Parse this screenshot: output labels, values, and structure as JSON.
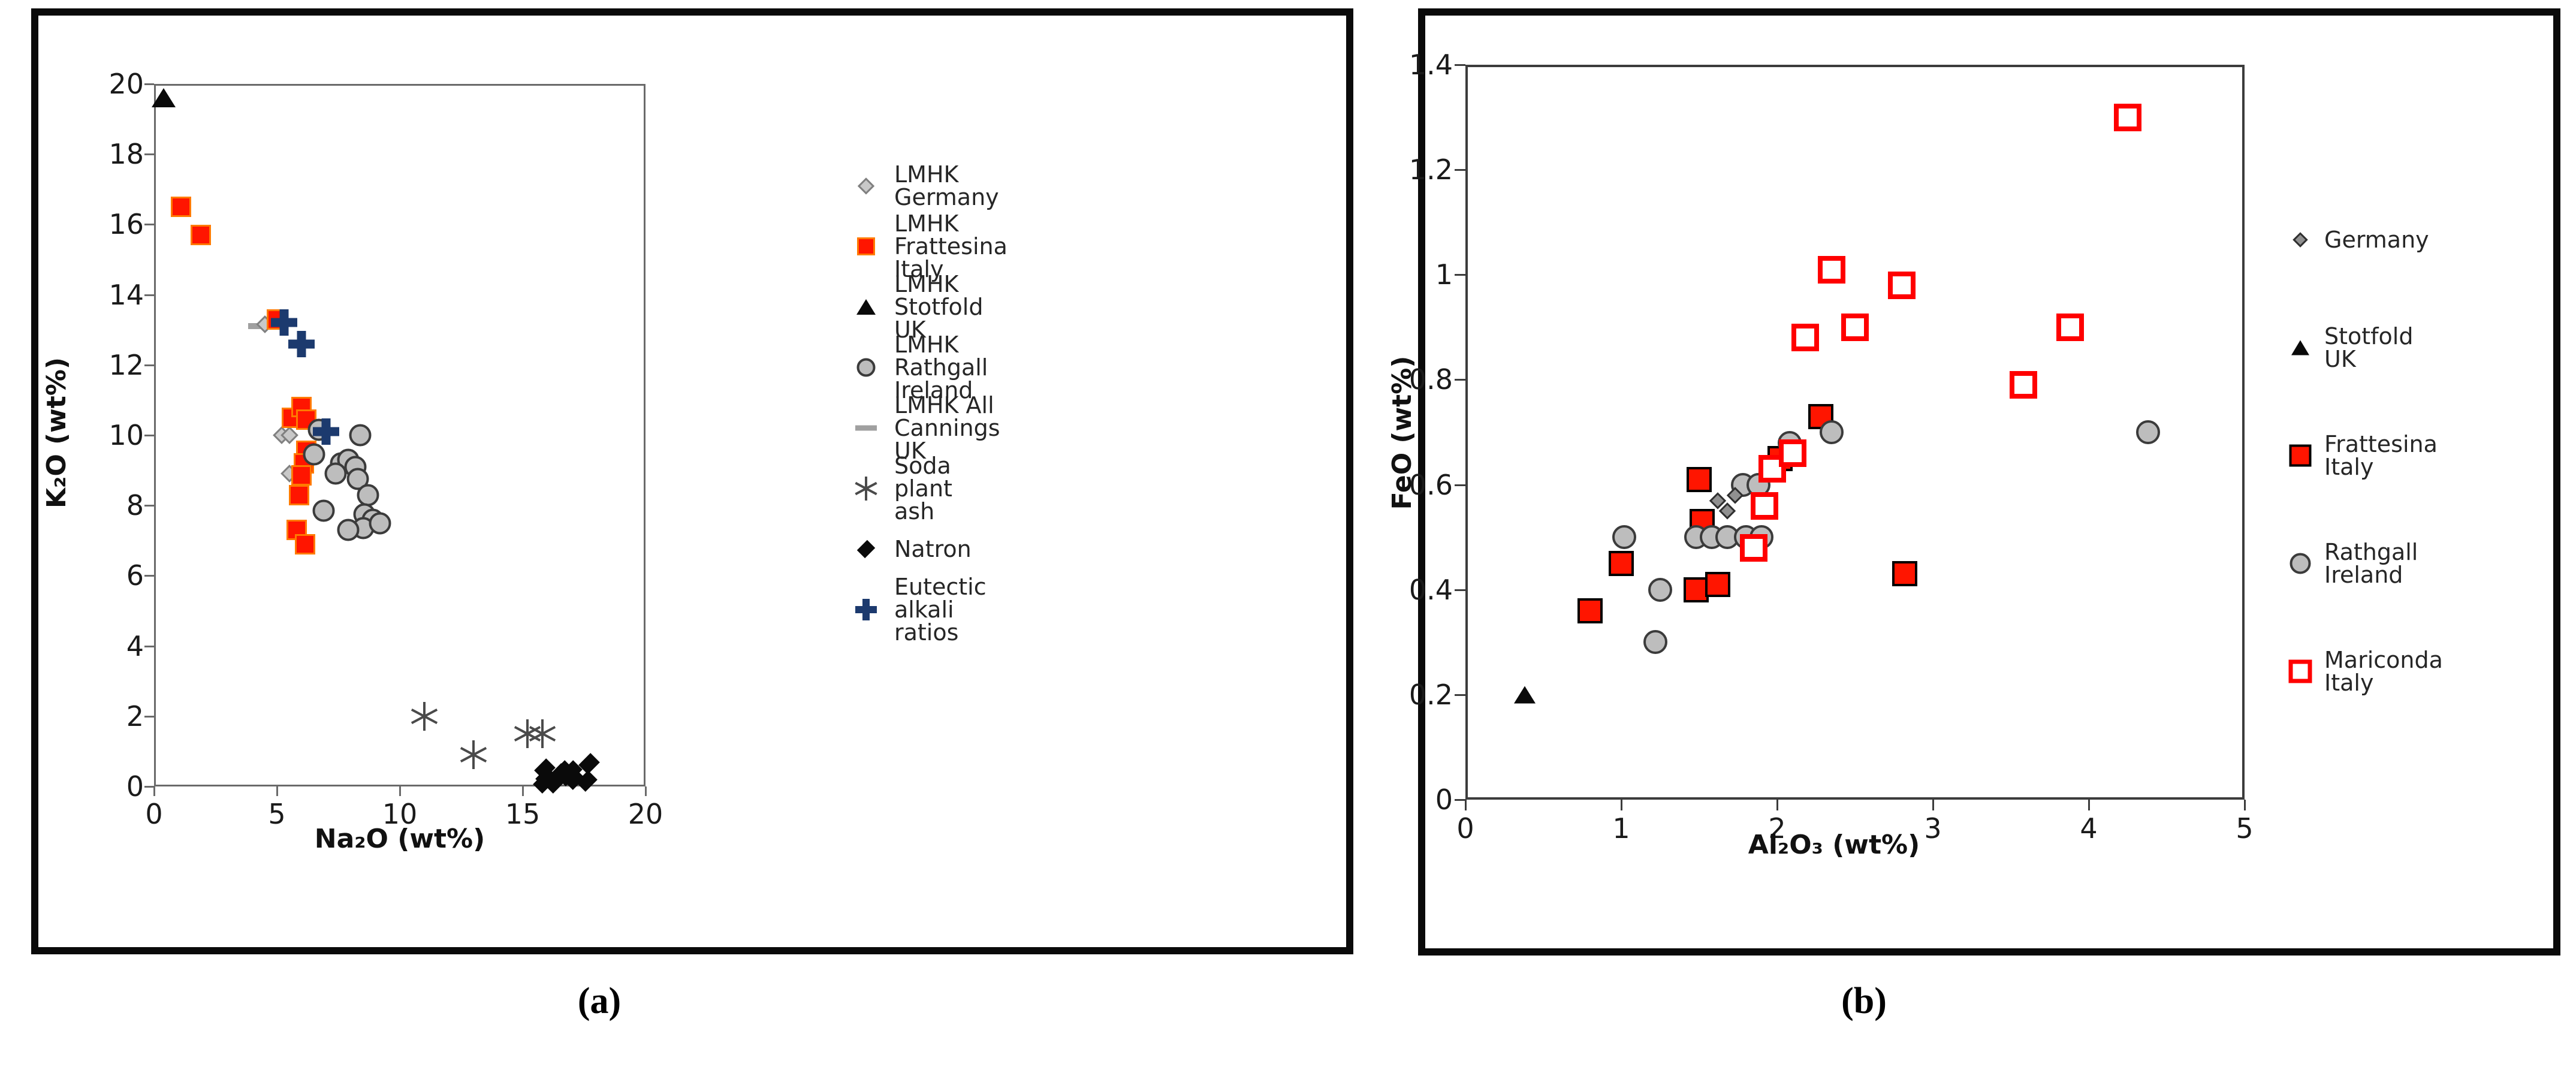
{
  "figure": {
    "caption_a": "(a)",
    "caption_b": "(b)"
  },
  "colors": {
    "red_fill": "#ff1500",
    "red_border_a": "#ff7a00",
    "black": "#0a0a0a",
    "navy": "#1c3a6e",
    "gray_fill": "#bdbdbd",
    "gray_stroke": "#3b3b3b",
    "open_diamond_fill": "#c8c8c8",
    "open_diamond_stroke": "#808080",
    "diamond_b_fill": "#909090",
    "dash_gray": "#a0a0a0",
    "asterisk_gray": "#4a4a4a",
    "frame_a": "#6a6a6a",
    "frame_b": "#3c3c3c",
    "open_square_red": "#ff0000"
  },
  "chart_data": [
    {
      "type": "scatter",
      "title": "",
      "xlabel": "Na₂O (wt%)",
      "ylabel": "K₂O (wt%)",
      "xlim": [
        0,
        20
      ],
      "ylim": [
        0,
        20
      ],
      "x_ticks": [
        0,
        5,
        10,
        15,
        20
      ],
      "y_ticks": [
        0,
        2,
        4,
        6,
        8,
        10,
        12,
        14,
        16,
        18,
        20
      ],
      "grid": false,
      "legend_position": "right-outside",
      "legend": [
        {
          "marker": "open-diamond",
          "label": "LMHK Germany"
        },
        {
          "marker": "square",
          "label": "LMHK Frattesina Italy"
        },
        {
          "marker": "triangle",
          "label": "LMHK Stotfold UK"
        },
        {
          "marker": "circle",
          "label": "LMHK Rathgall Ireland"
        },
        {
          "marker": "dash",
          "label": "LMHK All Cannings UK"
        },
        {
          "marker": "asterisk",
          "label": "Soda plant ash"
        },
        {
          "marker": "black-diamond",
          "label": "Natron"
        },
        {
          "marker": "plus",
          "label": "Eutectic alkali ratios"
        }
      ],
      "series": [
        {
          "name": "LMHK Stotfold UK",
          "marker": "triangle",
          "points": [
            [
              0.4,
              19.6
            ]
          ]
        },
        {
          "name": "LMHK All Cannings UK",
          "marker": "dash",
          "points": [
            [
              4.3,
              13.1
            ]
          ]
        },
        {
          "name": "LMHK Germany",
          "marker": "open-diamond",
          "points": [
            [
              4.5,
              13.15
            ],
            [
              5.2,
              10.0
            ],
            [
              5.5,
              10.0
            ],
            [
              5.5,
              8.9
            ]
          ]
        },
        {
          "name": "LMHK Frattesina Italy",
          "marker": "square",
          "points": [
            [
              1.1,
              16.5
            ],
            [
              1.9,
              15.7
            ],
            [
              5.0,
              13.3
            ],
            [
              5.6,
              10.5
            ],
            [
              6.0,
              10.8
            ],
            [
              6.2,
              10.45
            ],
            [
              6.2,
              9.55
            ],
            [
              6.1,
              9.2
            ],
            [
              6.0,
              8.85
            ],
            [
              5.9,
              8.3
            ],
            [
              5.8,
              7.3
            ],
            [
              6.15,
              6.9
            ]
          ]
        },
        {
          "name": "LMHK Rathgall Ireland",
          "marker": "circle",
          "points": [
            [
              6.7,
              10.15
            ],
            [
              8.4,
              10.0
            ],
            [
              6.5,
              9.45
            ],
            [
              7.6,
              9.2
            ],
            [
              7.9,
              9.3
            ],
            [
              8.2,
              9.1
            ],
            [
              7.4,
              8.9
            ],
            [
              8.3,
              8.75
            ],
            [
              6.9,
              7.85
            ],
            [
              8.7,
              8.3
            ],
            [
              8.55,
              7.75
            ],
            [
              8.9,
              7.6
            ],
            [
              8.5,
              7.35
            ],
            [
              9.2,
              7.5
            ],
            [
              7.9,
              7.3
            ]
          ]
        },
        {
          "name": "Soda plant ash",
          "marker": "asterisk",
          "points": [
            [
              11.0,
              2.0
            ],
            [
              13.0,
              0.9
            ],
            [
              15.2,
              1.5
            ],
            [
              15.8,
              1.5
            ]
          ]
        },
        {
          "name": "Natron",
          "marker": "black-diamond",
          "points": [
            [
              15.9,
              0.5
            ],
            [
              15.95,
              0.25
            ],
            [
              15.85,
              0.1
            ],
            [
              16.5,
              0.35
            ],
            [
              16.65,
              0.45
            ],
            [
              16.8,
              0.3
            ],
            [
              17.0,
              0.45
            ],
            [
              17.1,
              0.2
            ],
            [
              16.3,
              0.1
            ],
            [
              17.7,
              0.65
            ],
            [
              17.6,
              0.15
            ]
          ]
        },
        {
          "name": "Eutectic alkali ratios",
          "marker": "plus",
          "points": [
            [
              5.3,
              13.2
            ],
            [
              6.0,
              12.6
            ],
            [
              7.0,
              10.1
            ]
          ]
        }
      ]
    },
    {
      "type": "scatter",
      "title": "",
      "xlabel": "Al₂O₃ (wt%)",
      "ylabel": "FeO (wt%)",
      "xlim": [
        0,
        5
      ],
      "ylim": [
        0,
        1.4
      ],
      "x_ticks": [
        0,
        1,
        2,
        3,
        4,
        5
      ],
      "y_ticks": [
        0,
        0.2,
        0.4,
        0.6,
        0.8,
        1,
        1.2,
        1.4
      ],
      "grid": false,
      "legend_position": "right-outside",
      "legend": [
        {
          "marker": "diamond-b",
          "label": "Germany"
        },
        {
          "marker": "triangle",
          "label": "Stotfold UK"
        },
        {
          "marker": "square-b",
          "label": "Frattesina Italy"
        },
        {
          "marker": "circle",
          "label": "Rathgall Ireland"
        },
        {
          "marker": "open-square",
          "label": "Mariconda Italy"
        }
      ],
      "series": [
        {
          "name": "Stotfold UK",
          "marker": "triangle",
          "points": [
            [
              0.38,
              0.2
            ]
          ]
        },
        {
          "name": "Frattesina Italy",
          "marker": "square-b",
          "points": [
            [
              0.8,
              0.36
            ],
            [
              1.0,
              0.45
            ],
            [
              1.5,
              0.61
            ],
            [
              1.52,
              0.53
            ],
            [
              1.48,
              0.4
            ],
            [
              1.62,
              0.41
            ],
            [
              2.02,
              0.65
            ],
            [
              2.28,
              0.73
            ],
            [
              2.82,
              0.43
            ]
          ]
        },
        {
          "name": "Rathgall Ireland",
          "marker": "circle",
          "points": [
            [
              1.02,
              0.5
            ],
            [
              1.22,
              0.3
            ],
            [
              1.25,
              0.4
            ],
            [
              1.48,
              0.5
            ],
            [
              1.58,
              0.5
            ],
            [
              1.68,
              0.5
            ],
            [
              1.8,
              0.5
            ],
            [
              1.9,
              0.5
            ],
            [
              1.78,
              0.6
            ],
            [
              1.88,
              0.6
            ],
            [
              2.08,
              0.68
            ],
            [
              2.35,
              0.7
            ],
            [
              4.38,
              0.7
            ]
          ]
        },
        {
          "name": "Germany",
          "marker": "diamond-b",
          "points": [
            [
              1.62,
              0.57
            ],
            [
              1.73,
              0.58
            ],
            [
              1.68,
              0.55
            ]
          ]
        },
        {
          "name": "Mariconda Italy",
          "marker": "open-square",
          "points": [
            [
              1.85,
              0.48
            ],
            [
              1.92,
              0.56
            ],
            [
              1.97,
              0.63
            ],
            [
              2.1,
              0.66
            ],
            [
              2.18,
              0.88
            ],
            [
              2.35,
              1.01
            ],
            [
              2.5,
              0.9
            ],
            [
              2.8,
              0.98
            ],
            [
              3.58,
              0.79
            ],
            [
              3.88,
              0.9
            ],
            [
              4.25,
              1.3
            ]
          ]
        }
      ]
    }
  ]
}
